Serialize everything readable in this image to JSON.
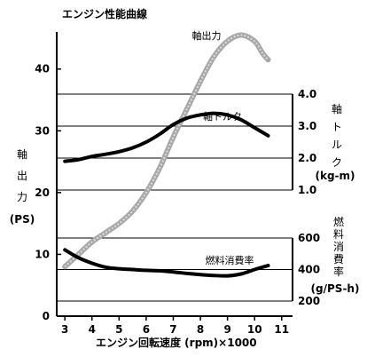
{
  "chart_data": {
    "type": "line",
    "title": "エンジン性能曲線",
    "xlabel": "エンジン回転速度 (rpm)×1000",
    "x_ticks": [
      3,
      4,
      5,
      6,
      7,
      8,
      9,
      10,
      11
    ],
    "xlim": [
      2.7,
      11.4
    ],
    "left_axis": {
      "label_chars": [
        "軸",
        "出",
        "力"
      ],
      "unit": "(PS)",
      "ylim": [
        0,
        46
      ],
      "ticks": [
        0,
        10,
        20,
        30,
        40
      ]
    },
    "torque_axis": {
      "label_chars": [
        "軸",
        "ト",
        "ル",
        "ク"
      ],
      "unit": "(kg-m)",
      "ylim": [
        1.0,
        4.0
      ],
      "ticks": [
        "1.0",
        "2.0",
        "3.0",
        "4.0"
      ],
      "tick_values": [
        1.0,
        2.0,
        3.0,
        4.0
      ]
    },
    "fuel_axis": {
      "label_chars": [
        "燃",
        "料",
        "消",
        "費",
        "率"
      ],
      "unit": "(g/PS-h)",
      "ylim": [
        200,
        600
      ],
      "ticks": [
        "200",
        "400",
        "600"
      ],
      "tick_values": [
        200,
        400,
        600
      ]
    },
    "series": [
      {
        "name": "軸出力",
        "axis": "left",
        "color": "#a8a8a8",
        "x": [
          3.0,
          3.5,
          4.0,
          4.5,
          5.0,
          5.5,
          6.0,
          6.5,
          7.0,
          7.5,
          8.0,
          8.5,
          9.0,
          9.5,
          10.0,
          10.3,
          10.5
        ],
        "y": [
          8.0,
          10.0,
          12.0,
          13.5,
          15.0,
          17.0,
          20.0,
          24.0,
          29.0,
          33.5,
          38.0,
          42.0,
          44.5,
          45.5,
          44.5,
          42.5,
          41.5
        ]
      },
      {
        "name": "軸トルク",
        "axis": "torque",
        "color": "#000000",
        "x": [
          3.0,
          3.5,
          4.0,
          4.5,
          5.0,
          5.5,
          6.0,
          6.5,
          7.0,
          7.5,
          8.0,
          8.5,
          9.0,
          9.5,
          10.0,
          10.5
        ],
        "y": [
          1.9,
          1.95,
          2.05,
          2.12,
          2.2,
          2.32,
          2.5,
          2.75,
          3.05,
          3.25,
          3.35,
          3.4,
          3.35,
          3.2,
          2.95,
          2.7
        ]
      },
      {
        "name": "燃料消費率",
        "axis": "fuel",
        "color": "#000000",
        "x": [
          3.0,
          3.5,
          4.0,
          4.5,
          5.0,
          5.5,
          6.0,
          6.5,
          7.0,
          7.5,
          8.0,
          8.5,
          9.0,
          9.5,
          10.0,
          10.5
        ],
        "y": [
          525,
          475,
          440,
          415,
          405,
          400,
          395,
          392,
          385,
          375,
          368,
          362,
          360,
          372,
          400,
          425
        ]
      }
    ],
    "grid": "horizontal"
  }
}
